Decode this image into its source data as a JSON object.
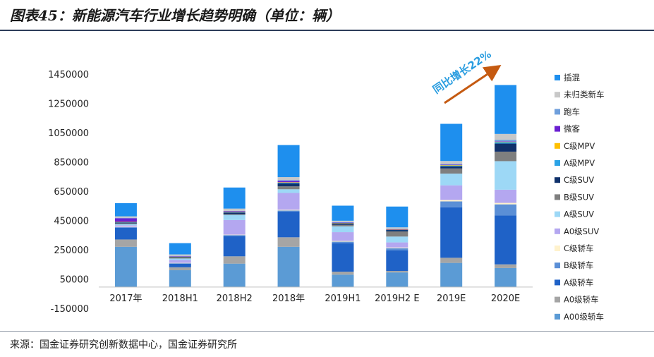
{
  "title": "图表45：新能源汽车行业增长趋势明确（单位：辆）",
  "source": "来源：国金证券研究创新数据中心，国金证券研究所",
  "chart_data": {
    "type": "bar",
    "stacked": true,
    "categories": [
      "2017年",
      "2018H1",
      "2018H2",
      "2018年",
      "2019H1",
      "2019H2 E",
      "2019E",
      "2020E"
    ],
    "yticks": [
      -150000,
      50000,
      250000,
      450000,
      650000,
      850000,
      1050000,
      1250000,
      1450000
    ],
    "ylim": [
      -150000,
      1450000
    ],
    "legend_position": "right",
    "annotation": "同比增长22%",
    "series": [
      {
        "name": "A00级轿车",
        "color": "#5b9bd5",
        "values": [
          275000,
          115000,
          160000,
          275000,
          85000,
          100000,
          165000,
          130000
        ]
      },
      {
        "name": "A0级轿车",
        "color": "#a5a5a5",
        "values": [
          50000,
          20000,
          50000,
          65000,
          20000,
          10000,
          35000,
          25000
        ]
      },
      {
        "name": "A级轿车",
        "color": "#1f62c7",
        "values": [
          80000,
          25000,
          140000,
          175000,
          195000,
          140000,
          345000,
          335000
        ]
      },
      {
        "name": "B级轿车",
        "color": "#5b8fd6",
        "values": [
          5000,
          3000,
          5000,
          8000,
          10000,
          15000,
          40000,
          75000
        ]
      },
      {
        "name": "C级轿车",
        "color": "#fff2cc",
        "values": [
          2000,
          2000,
          3000,
          5000,
          5000,
          5000,
          10000,
          10000
        ]
      },
      {
        "name": "A0级SUV",
        "color": "#b4a7f0",
        "values": [
          10000,
          20000,
          100000,
          115000,
          60000,
          35000,
          100000,
          90000
        ]
      },
      {
        "name": "A级SUV",
        "color": "#9dd8f6",
        "values": [
          8000,
          10000,
          35000,
          25000,
          40000,
          40000,
          80000,
          195000
        ]
      },
      {
        "name": "B级SUV",
        "color": "#7f7f7f",
        "values": [
          5000,
          5000,
          5000,
          20000,
          10000,
          35000,
          35000,
          65000
        ]
      },
      {
        "name": "C级SUV",
        "color": "#10316b",
        "values": [
          5000,
          5000,
          10000,
          20000,
          10000,
          10000,
          15000,
          55000
        ]
      },
      {
        "name": "A级MPV",
        "color": "#2ba3e6",
        "values": [
          3000,
          2000,
          3000,
          5000,
          2000,
          2000,
          5000,
          10000
        ]
      },
      {
        "name": "C级MPV",
        "color": "#ffc000",
        "values": [
          2000,
          1000,
          2000,
          3000,
          1000,
          1000,
          3000,
          3000
        ]
      },
      {
        "name": "微客",
        "color": "#6a1fd1",
        "values": [
          25000,
          2000,
          5000,
          10000,
          2000,
          2000,
          3000,
          3000
        ]
      },
      {
        "name": "跑车",
        "color": "#6f9fdc",
        "values": [
          3000,
          3000,
          3000,
          5000,
          3000,
          3000,
          5000,
          10000
        ]
      },
      {
        "name": "未归类新车",
        "color": "#c8c8c8",
        "values": [
          10000,
          10000,
          15000,
          20000,
          10000,
          10000,
          20000,
          40000
        ]
      },
      {
        "name": "插混",
        "color": "#1e8fee",
        "values": [
          90000,
          77000,
          144000,
          219000,
          103000,
          142000,
          254000,
          334000
        ]
      }
    ]
  }
}
